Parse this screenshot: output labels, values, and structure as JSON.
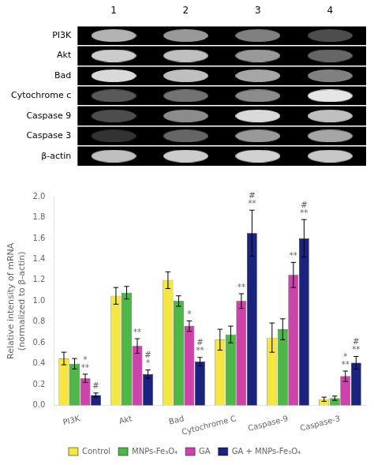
{
  "chart_data": [
    {
      "type": "heatmap",
      "categories": [
        "1",
        "2",
        "3",
        "4"
      ],
      "rows": [
        "PI3K",
        "Akt",
        "Bad",
        "Cytochrome c",
        "Caspase 9",
        "Caspase 3",
        "β-actin"
      ],
      "cells": [
        [
          0.7,
          0.6,
          0.5,
          0.3
        ],
        [
          0.8,
          0.75,
          0.6,
          0.4
        ],
        [
          0.85,
          0.75,
          0.65,
          0.5
        ],
        [
          0.35,
          0.45,
          0.55,
          0.9
        ],
        [
          0.3,
          0.55,
          0.85,
          0.75
        ],
        [
          0.2,
          0.4,
          0.6,
          0.65
        ],
        [
          0.75,
          0.8,
          0.82,
          0.78
        ]
      ]
    },
    {
      "type": "bar",
      "categories": [
        "PI3K",
        "Akt",
        "Bad",
        "Cytochrome C",
        "Caspase-9",
        "Caspase-3"
      ],
      "series": [
        {
          "name": "Control",
          "color": "#f5e642",
          "values": [
            0.45,
            1.05,
            1.2,
            0.63,
            0.65,
            0.06
          ],
          "errors": [
            0.06,
            0.08,
            0.08,
            0.1,
            0.14,
            0.02
          ]
        },
        {
          "name": "MNPs-Fe₃O₄",
          "color": "#4db848",
          "values": [
            0.4,
            1.08,
            1.0,
            0.68,
            0.73,
            0.07
          ],
          "errors": [
            0.05,
            0.06,
            0.05,
            0.08,
            0.1,
            0.02
          ]
        },
        {
          "name": "GA",
          "color": "#cc44aa",
          "values": [
            0.26,
            0.57,
            0.76,
            1.0,
            1.25,
            0.28
          ],
          "errors": [
            0.04,
            0.07,
            0.05,
            0.07,
            0.12,
            0.05
          ]
        },
        {
          "name": "GA + MNPs-Fe₃O₄",
          "color": "#1a237e",
          "values": [
            0.1,
            0.3,
            0.42,
            1.65,
            1.6,
            0.41
          ],
          "errors": [
            0.02,
            0.04,
            0.04,
            0.22,
            0.18,
            0.06
          ]
        }
      ],
      "ylabel": "Relative intensity of mRNA\n(normalized to β-actin)",
      "ylim": [
        0,
        2.0
      ],
      "yticks": [
        {
          "value": 0.0,
          "label": "0.0"
        },
        0.2,
        0.4,
        0.6,
        0.8,
        {
          "value": 1.0,
          "label": "1.0"
        },
        1.2,
        1.4,
        1.6,
        1.8,
        {
          "value": 2.0,
          "label": "2.0"
        }
      ],
      "grid": false,
      "legend": "bottom",
      "annotations": [
        {
          "category": "PI3K",
          "series": "GA",
          "texts": [
            "*",
            "**"
          ]
        },
        {
          "category": "PI3K",
          "series": "GA + MNPs-Fe₃O₄",
          "texts": [
            "#"
          ]
        },
        {
          "category": "Akt",
          "series": "GA",
          "texts": [
            "**"
          ]
        },
        {
          "category": "Akt",
          "series": "GA + MNPs-Fe₃O₄",
          "texts": [
            "#",
            "*"
          ]
        },
        {
          "category": "Bad",
          "series": "GA",
          "texts": [
            "*"
          ]
        },
        {
          "category": "Bad",
          "series": "GA + MNPs-Fe₃O₄",
          "texts": [
            "#",
            "**"
          ]
        },
        {
          "category": "Cytochrome C",
          "series": "GA",
          "texts": [
            "**"
          ]
        },
        {
          "category": "Cytochrome C",
          "series": "GA + MNPs-Fe₃O₄",
          "texts": [
            "#",
            "**"
          ]
        },
        {
          "category": "Caspase-9",
          "series": "GA",
          "texts": [
            "**"
          ]
        },
        {
          "category": "Caspase-9",
          "series": "GA + MNPs-Fe₃O₄",
          "texts": [
            "#",
            "**"
          ]
        },
        {
          "category": "Caspase-3",
          "series": "GA",
          "texts": [
            "*",
            "**"
          ]
        },
        {
          "category": "Caspase-3",
          "series": "GA + MNPs-Fe₃O₄",
          "texts": [
            "#",
            "**"
          ]
        }
      ]
    }
  ]
}
